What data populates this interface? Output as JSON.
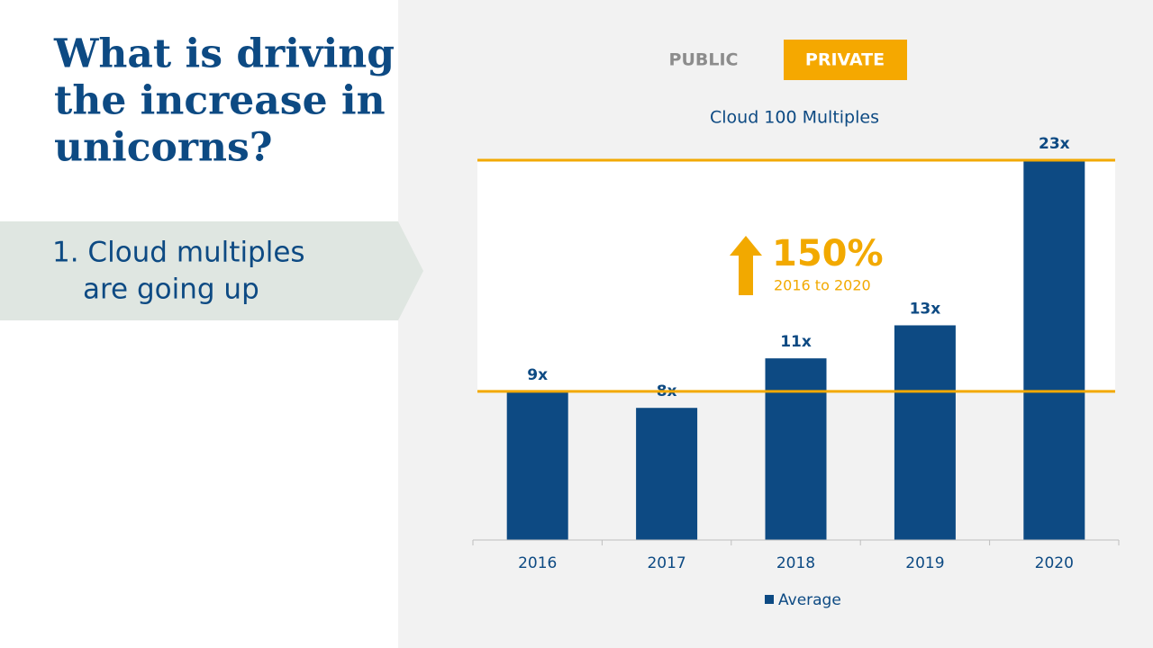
{
  "headline": [
    "What is driving",
    "the increase in",
    "unicorns?"
  ],
  "point": [
    "1. Cloud multiples",
    "are going up"
  ],
  "tabs": [
    "PUBLIC",
    "PRIVATE"
  ],
  "chart_data": {
    "type": "bar",
    "title": "Cloud 100 Multiples",
    "categories": [
      "2016",
      "2017",
      "2018",
      "2019",
      "2020"
    ],
    "series": [
      {
        "name": "Average",
        "color": "#0d4a83",
        "values": [
          9,
          8,
          11,
          13,
          23
        ],
        "value_labels": [
          "9x",
          "8x",
          "11x",
          "13x",
          "23x"
        ]
      }
    ],
    "ylim": [
      0,
      23
    ],
    "annotation": {
      "value": "150%",
      "label": "2016 to 2020",
      "color": "#f2a900"
    }
  }
}
